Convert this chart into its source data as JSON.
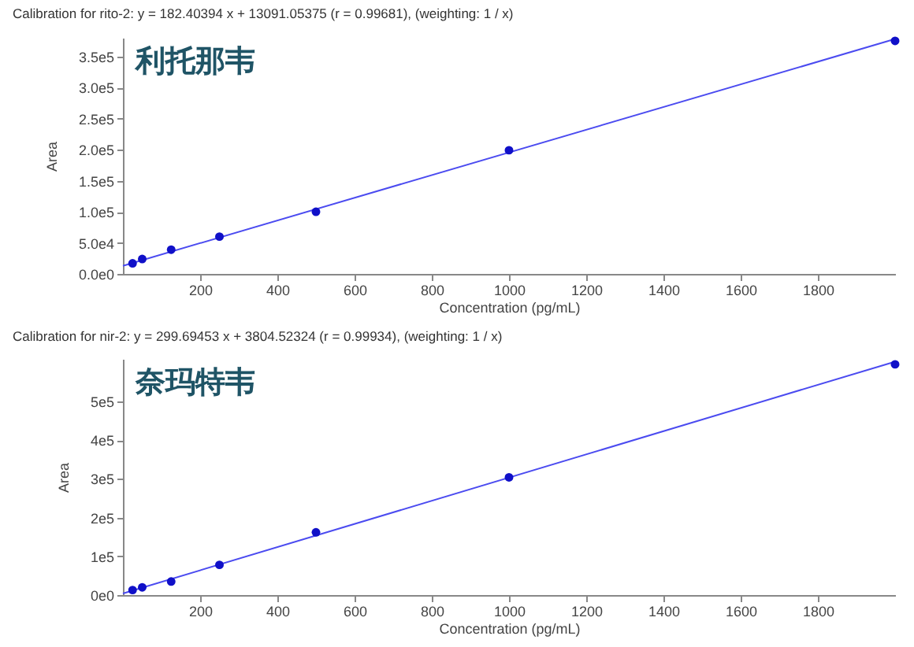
{
  "chart_data": [
    {
      "type": "scatter",
      "title": "Calibration for rito-2: y = 182.40394 x + 13091.05375 (r = 0.99681), (weighting: 1 / x)",
      "xlabel": "Concentration (pg/mL)",
      "ylabel": "Area",
      "annotations": [
        "利托那韦"
      ],
      "xlim": [
        0,
        2000
      ],
      "xticks": [
        200,
        400,
        600,
        800,
        1000,
        1200,
        1400,
        1600,
        1800
      ],
      "ylim": [
        0,
        380000
      ],
      "yticks": [
        {
          "value": 0,
          "label": "0.0e0"
        },
        {
          "value": 50000,
          "label": "5.0e4"
        },
        {
          "value": 100000,
          "label": "1.0e5"
        },
        {
          "value": 150000,
          "label": "1.5e5"
        },
        {
          "value": 200000,
          "label": "2.0e5"
        },
        {
          "value": 250000,
          "label": "2.5e5"
        },
        {
          "value": 300000,
          "label": "3.0e5"
        },
        {
          "value": 350000,
          "label": "3.5e5"
        }
      ],
      "series": [
        {
          "type": "line",
          "color": "#4b4bf0",
          "x": [
            0,
            2000
          ],
          "values": [
            13000,
            378000
          ]
        },
        {
          "color": "#1010c8",
          "marker": "circle",
          "x": [
            25,
            50,
            125,
            250,
            500,
            1000,
            2000
          ],
          "values": [
            17000,
            24000,
            39000,
            60000,
            100000,
            199000,
            375000
          ]
        }
      ]
    },
    {
      "type": "scatter",
      "title": "Calibration for nir-2: y = 299.69453 x + 3804.52324 (r = 0.99934), (weighting: 1 / x)",
      "xlabel": "Concentration (pg/mL)",
      "ylabel": "Area",
      "annotations": [
        "奈玛特韦"
      ],
      "xlim": [
        0,
        2000
      ],
      "xticks": [
        200,
        400,
        600,
        800,
        1000,
        1200,
        1400,
        1600,
        1800
      ],
      "ylim": [
        0,
        610000
      ],
      "yticks": [
        {
          "value": 0,
          "label": "0e0"
        },
        {
          "value": 100000,
          "label": "1e5"
        },
        {
          "value": 200000,
          "label": "2e5"
        },
        {
          "value": 300000,
          "label": "3e5"
        },
        {
          "value": 400000,
          "label": "4e5"
        },
        {
          "value": 500000,
          "label": "5e5"
        }
      ],
      "series": [
        {
          "type": "line",
          "color": "#4b4bf0",
          "x": [
            0,
            2000
          ],
          "values": [
            4000,
            603000
          ]
        },
        {
          "color": "#1010c8",
          "marker": "circle",
          "x": [
            25,
            50,
            125,
            250,
            500,
            1000,
            2000
          ],
          "values": [
            13000,
            20000,
            35000,
            78000,
            162000,
            304000,
            596000
          ]
        }
      ]
    }
  ]
}
